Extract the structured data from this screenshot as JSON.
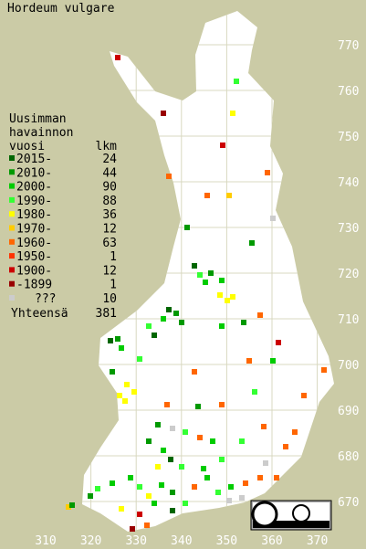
{
  "title": "Hordeum vulgare",
  "legend": {
    "heading": [
      "Uusimman",
      "havainnon",
      "vuosi"
    ],
    "count_heading": "lkm",
    "rows": [
      {
        "label": "2015-",
        "count": 24,
        "color": "#006600"
      },
      {
        "label": "2010-",
        "count": 44,
        "color": "#009900"
      },
      {
        "label": "2000-",
        "count": 90,
        "color": "#00cc00"
      },
      {
        "label": "1990-",
        "count": 88,
        "color": "#33ff33"
      },
      {
        "label": "1980-",
        "count": 36,
        "color": "#ffff00"
      },
      {
        "label": "1970-",
        "count": 12,
        "color": "#ffcc00"
      },
      {
        "label": "1960-",
        "count": 63,
        "color": "#ff6600"
      },
      {
        "label": "1950-",
        "count": 1,
        "color": "#ff3300"
      },
      {
        "label": "1900-",
        "count": 12,
        "color": "#cc0000"
      },
      {
        "label": "-1899",
        "count": 1,
        "color": "#990000"
      },
      {
        "label": "???",
        "count": 10,
        "color": "#cccccc"
      }
    ],
    "total_label": "Yhteensä",
    "total": 381
  },
  "x_axis_labels": [
    310,
    320,
    330,
    340,
    350,
    360,
    370
  ],
  "y_axis_labels": [
    770,
    760,
    750,
    740,
    730,
    720,
    710,
    700,
    690,
    680,
    670
  ]
}
